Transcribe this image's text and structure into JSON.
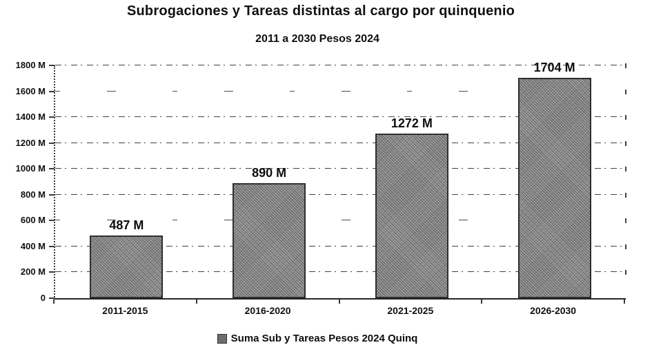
{
  "chart_data": {
    "type": "bar",
    "title": "Subrogaciones y Tareas distintas al cargo por quinquenio",
    "subtitle": "2011 a 2030 Pesos 2024",
    "categories": [
      "2011-2015",
      "2016-2020",
      "2021-2025",
      "2026-2030"
    ],
    "values": [
      487,
      890,
      1272,
      1704
    ],
    "value_labels": [
      "487 M",
      "890 M",
      "1272 M",
      "1704 M"
    ],
    "series_name": "Suma Sub y Tareas Pesos 2024 Quinq",
    "xlabel": "",
    "ylabel": "",
    "ylim": [
      0,
      1800
    ],
    "ytick_step": 200,
    "ytick_values": [
      0,
      200,
      400,
      600,
      800,
      1000,
      1200,
      1400,
      1600,
      1800
    ],
    "ytick_labels": [
      "0",
      "200 M",
      "400 M",
      "600 M",
      "800 M",
      "1000 M",
      "1200 M",
      "1400 M",
      "1600 M",
      "1800 M"
    ],
    "sparse_gridline_values": [
      600,
      1600
    ],
    "grid": "horizontal-dashed",
    "legend_position": "bottom-center",
    "legend_marker": "speckled-square",
    "bar_fill_color": "#aeaeae",
    "bar_border_color": "#2e2e2e",
    "text_color": "#101010",
    "background_color": "#ffffff"
  }
}
